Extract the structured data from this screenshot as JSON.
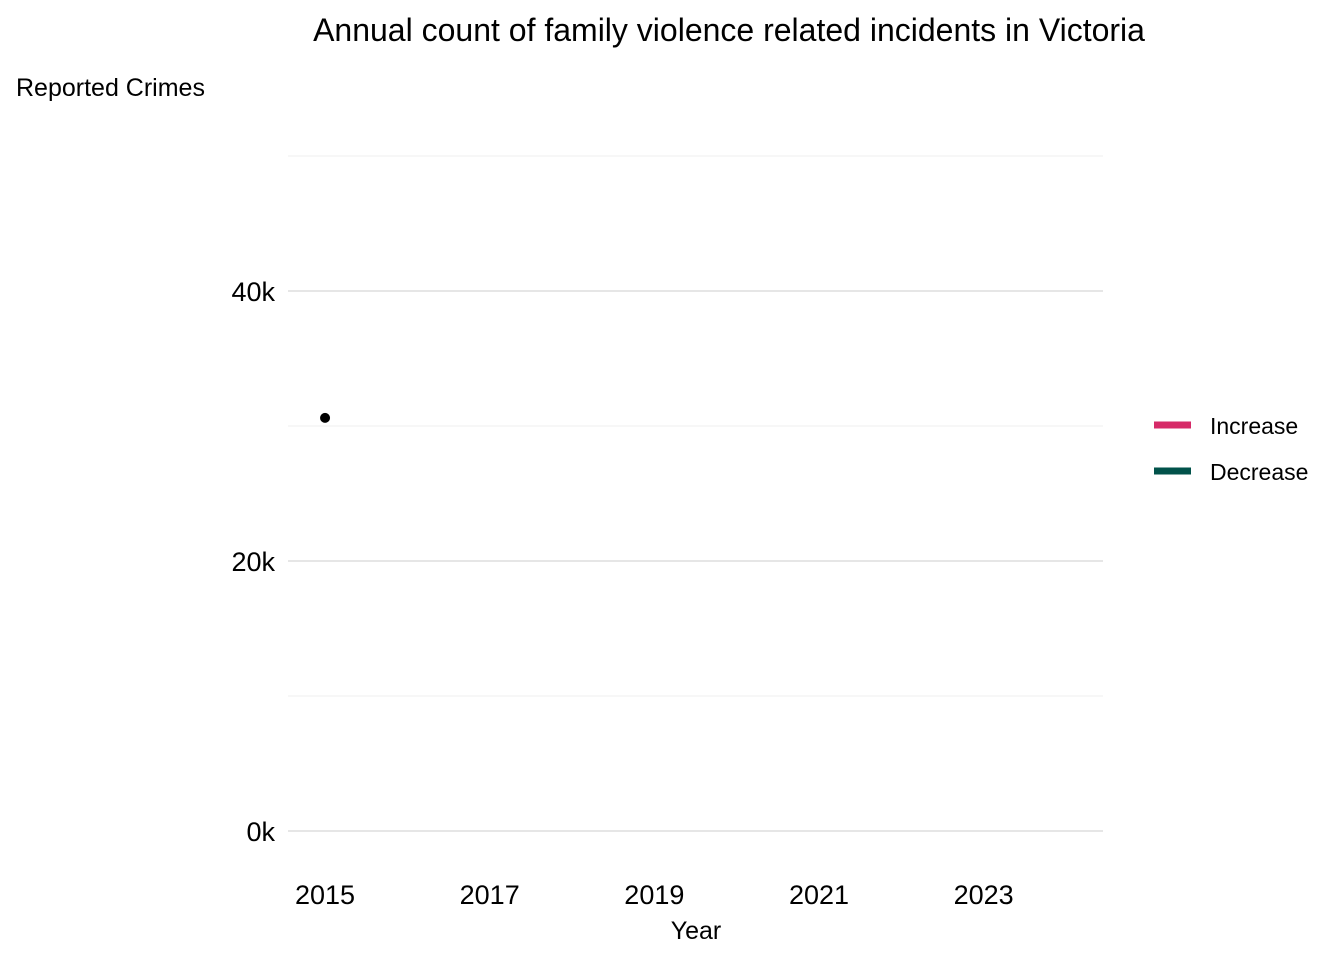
{
  "chart_data": {
    "type": "line",
    "title": "Annual count of family violence related incidents in Victoria",
    "ylabel": "Reported Crimes",
    "xlabel": "Year",
    "x_ticks": [
      2015,
      2017,
      2019,
      2021,
      2023
    ],
    "y_ticks": [
      {
        "value": 0,
        "label": "0k"
      },
      {
        "value": 20000,
        "label": "20k"
      },
      {
        "value": 40000,
        "label": "40k"
      }
    ],
    "y_minor": [
      10000,
      30000,
      50000
    ],
    "xlim": [
      2014.55,
      2024.45
    ],
    "ylim": [
      0,
      50000
    ],
    "grid": true,
    "legend_position": "right",
    "legend": [
      {
        "name": "Increase",
        "color": "#d62a68"
      },
      {
        "name": "Decrease",
        "color": "#01524a"
      }
    ],
    "points": [
      {
        "x": 2015,
        "y": 30600
      }
    ],
    "point_color": "#000000"
  }
}
